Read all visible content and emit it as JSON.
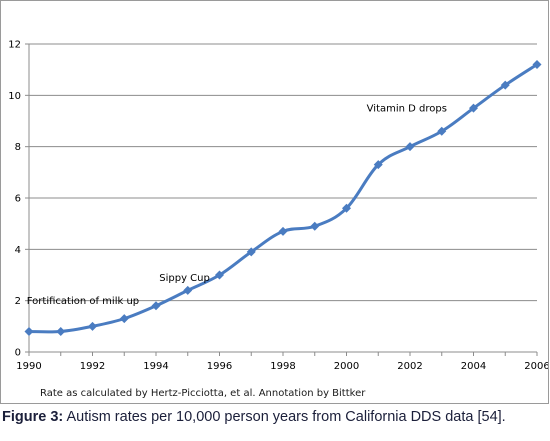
{
  "chart_data": {
    "type": "line",
    "x": [
      1990,
      1991,
      1992,
      1993,
      1994,
      1995,
      1996,
      1997,
      1998,
      1999,
      2000,
      2001,
      2002,
      2003,
      2004,
      2005,
      2006
    ],
    "series": [
      {
        "values": [
          0.8,
          0.8,
          1.0,
          1.3,
          1.8,
          2.4,
          3.0,
          3.9,
          4.7,
          4.9,
          5.6,
          7.3,
          8.0,
          8.6,
          9.5,
          10.4,
          11.2
        ]
      }
    ],
    "xlim": [
      1990,
      2006
    ],
    "ylim": [
      0,
      12
    ],
    "x_ticks": [
      "1990",
      "1992",
      "1994",
      "1996",
      "1998",
      "2000",
      "2002",
      "2004",
      "2006"
    ],
    "y_ticks": [
      "0",
      "2",
      "4",
      "6",
      "8",
      "10",
      "12"
    ],
    "grid": "horizontal",
    "legend": "none",
    "series_color": "#4a7cc1",
    "annotations": [
      {
        "text": "Fortification of milk up",
        "x": 1991.7,
        "y": 2.0
      },
      {
        "text": "Sippy Cup",
        "x": 1994.9,
        "y": 2.9
      },
      {
        "text": "Vitamin D drops",
        "x": 2001.9,
        "y": 9.5
      }
    ]
  },
  "note": "Rate as calculated by Hertz-Picciotta, et al.  Annotation by Bittker",
  "caption": {
    "label": "Figure 3:",
    "text": " Autism rates per 10,000 person years from California DDS data [54]."
  }
}
